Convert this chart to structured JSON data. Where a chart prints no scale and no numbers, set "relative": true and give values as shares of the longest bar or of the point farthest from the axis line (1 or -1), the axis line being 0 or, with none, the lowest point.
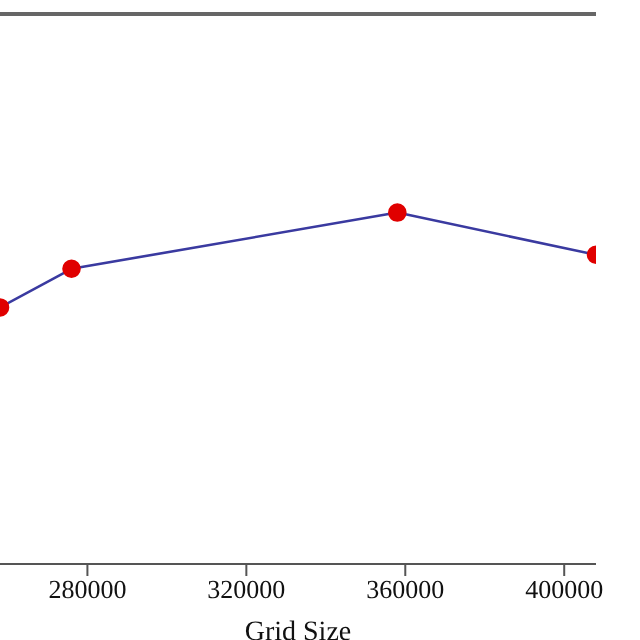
{
  "chart_data": {
    "type": "line",
    "xlabel": "Grid Size",
    "relative": true,
    "x": [
      258000,
      276000,
      358000,
      408000
    ],
    "xlim": [
      258000,
      408000
    ],
    "xticks": [
      280000,
      320000,
      360000,
      400000
    ],
    "series": [
      {
        "color": "#3a3aa0",
        "values": [
          0.73,
          0.84,
          1,
          0.88
        ]
      }
    ],
    "marker": "circle",
    "line_style": "solid",
    "grid": false,
    "legend": false
  }
}
